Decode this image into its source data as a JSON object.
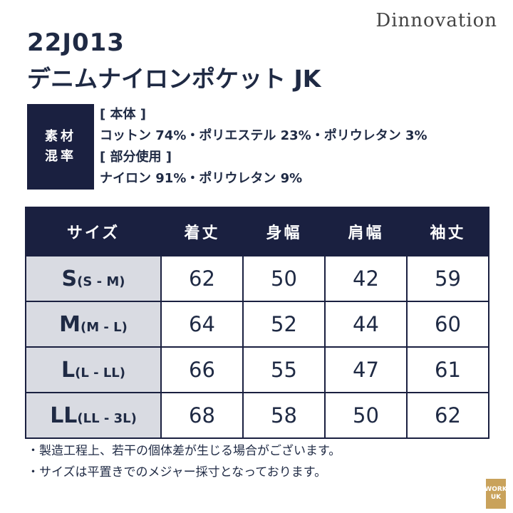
{
  "brand": "Dinnovation",
  "product": {
    "code": "22J013",
    "name": "デニムナイロンポケット JK"
  },
  "material": {
    "label_line1": "素材",
    "label_line2": "混率",
    "main_heading": "[ 本体 ]",
    "main_text": "コットン 74%・ポリエステル 23%・ポリウレタン 3%",
    "partial_heading": "[ 部分使用 ]",
    "partial_text": "ナイロン 91%・ポリウレタン 9%"
  },
  "table": {
    "headers": [
      "サイズ",
      "着丈",
      "身幅",
      "肩幅",
      "袖丈"
    ],
    "rows": [
      {
        "size": "S",
        "sub": "(S - M)",
        "values": [
          "62",
          "50",
          "42",
          "59"
        ]
      },
      {
        "size": "M",
        "sub": "(M - L)",
        "values": [
          "64",
          "52",
          "44",
          "60"
        ]
      },
      {
        "size": "L",
        "sub": "(L - LL)",
        "values": [
          "66",
          "55",
          "47",
          "61"
        ]
      },
      {
        "size": "LL",
        "sub": "(LL - 3L)",
        "values": [
          "68",
          "58",
          "50",
          "62"
        ]
      }
    ]
  },
  "notes": [
    "・製造工程上、若干の個体差が生じる場合がございます。",
    "・サイズは平置きでのメジャー採寸となっております。"
  ],
  "logo": {
    "line1": "WORK",
    "line2": "UK"
  },
  "colors": {
    "navy": "#1a2040",
    "size_cell": "#d9dbe2",
    "logo": "#c9a25b"
  }
}
